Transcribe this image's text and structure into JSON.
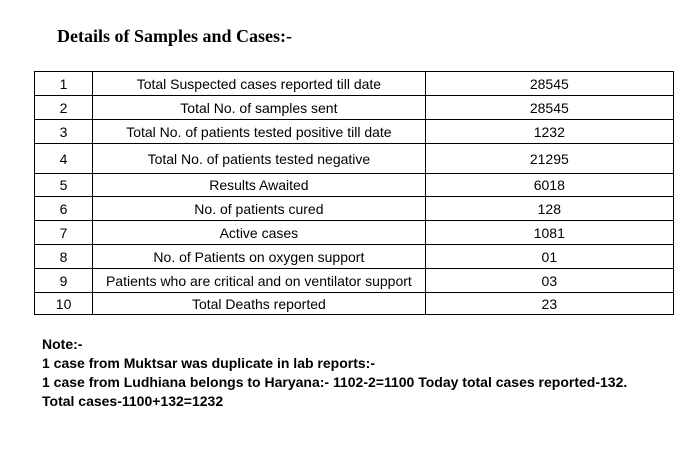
{
  "heading": "Details of Samples and Cases:-",
  "rows": [
    {
      "sn": "1",
      "label": "Total Suspected cases reported till date",
      "value": "28545"
    },
    {
      "sn": "2",
      "label": "Total No. of samples sent",
      "value": "28545"
    },
    {
      "sn": "3",
      "label": "Total No. of patients tested positive till date",
      "value": "1232"
    },
    {
      "sn": "4",
      "label": "Total No. of patients tested negative",
      "value": "21295"
    },
    {
      "sn": "5",
      "label": "Results Awaited",
      "value": "6018"
    },
    {
      "sn": "6",
      "label": "No. of patients cured",
      "value": "128"
    },
    {
      "sn": "7",
      "label": "Active cases",
      "value": "1081"
    },
    {
      "sn": "8",
      "label": "No. of Patients on oxygen support",
      "value": "01"
    },
    {
      "sn": "9",
      "label": "Patients who are critical and on ventilator support",
      "value": "03"
    },
    {
      "sn": "10",
      "label": "Total Deaths reported",
      "value": "23"
    }
  ],
  "note": {
    "title": "Note:-",
    "lines": [
      "1 case from Muktsar was duplicate in lab reports:-",
      "1 case from Ludhiana belongs to Haryana:- 1102-2=1100 Today total cases reported-132.",
      "Total cases-1100+132=1232"
    ]
  }
}
